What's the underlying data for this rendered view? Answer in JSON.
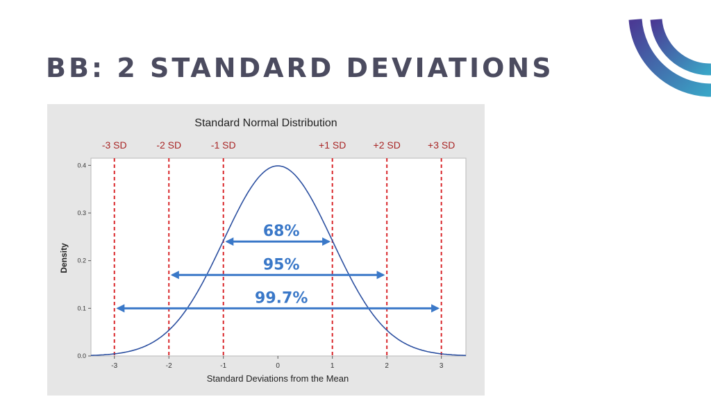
{
  "slide": {
    "title": "BB: 2 STANDARD DEVIATIONS",
    "logo_icon": "concentric-arcs-logo",
    "logo_colors": [
      "#4a3a94",
      "#3aa0c4"
    ]
  },
  "chart_data": {
    "type": "line",
    "title": "Standard Normal Distribution",
    "xlabel": "Standard Deviations from the Mean",
    "ylabel": "Density",
    "xlim": [
      -3.43,
      3.45
    ],
    "ylim": [
      0,
      0.415
    ],
    "xticks": [
      "-3",
      "-2",
      "-1",
      "0",
      "1",
      "2",
      "3"
    ],
    "xtick_values": [
      -3,
      -2,
      -1,
      0,
      1,
      2,
      3
    ],
    "yticks": [
      "0.0",
      "0.1",
      "0.2",
      "0.3",
      "0.4"
    ],
    "ytick_values": [
      0,
      0.1,
      0.2,
      0.3,
      0.4
    ],
    "series": [
      {
        "function": "standard normal pdf",
        "mean": 0,
        "sd": 1,
        "color": "#2b4fa0"
      }
    ],
    "reference_lines": [
      {
        "x": -3,
        "label": "-3 SD"
      },
      {
        "x": -2,
        "label": "-2 SD"
      },
      {
        "x": -1,
        "label": "-1 SD"
      },
      {
        "x": 1,
        "label": "+1 SD"
      },
      {
        "x": 2,
        "label": "+2 SD"
      },
      {
        "x": 3,
        "label": "+3 SD"
      }
    ],
    "reference_line_color": "#d9262a",
    "annotations": [
      {
        "label": "68%",
        "from": -1,
        "to": 1,
        "y": 0.24
      },
      {
        "label": "95%",
        "from": -2,
        "to": 2,
        "y": 0.17
      },
      {
        "label": "99.7%",
        "from": -3,
        "to": 3,
        "y": 0.1
      }
    ],
    "annotation_color": "#3a78c8",
    "background": "#e6e6e6",
    "grid": false,
    "legend": "none"
  }
}
